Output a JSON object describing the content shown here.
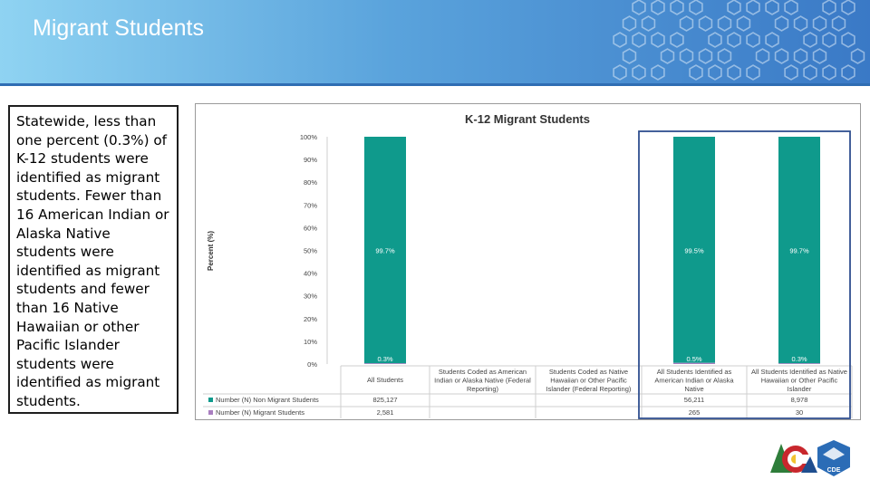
{
  "slide": {
    "title": "Migrant Students",
    "body_text": "Statewide, less than one percent (0.3%) of K-12 students were identified as migrant students. Fewer than 16 American Indian or Alaska Native students were identified as migrant students and fewer than 16 Native Hawaiian or other Pacific Islander students were identified as migrant students.",
    "logo_left_text": "",
    "logo_right_text": "CDE"
  },
  "chart_data": {
    "type": "bar",
    "stacked": true,
    "title": "K-12 Migrant Students",
    "ylabel": "Percent (%)",
    "ylim": [
      0,
      100
    ],
    "yticks": [
      "0%",
      "10%",
      "20%",
      "30%",
      "40%",
      "50%",
      "60%",
      "70%",
      "80%",
      "90%",
      "100%"
    ],
    "categories": [
      "All Students",
      "Students Coded as American Indian or Alaska Native (Federal Reporting)",
      "Students Coded as Native Hawaiian or Other Pacific Islander (Federal Reporting)",
      "All Students Identified as American Indian or Alaska Native",
      "All Students Identified as Native Hawaiian or Other Pacific Islander"
    ],
    "series": [
      {
        "name": "Number (N) Non Migrant Students",
        "color": "#0f9a8c",
        "values": [
          99.7,
          null,
          null,
          99.5,
          99.7
        ],
        "labels": [
          "99.7%",
          "",
          "",
          "99.5%",
          "99.7%"
        ],
        "table": [
          "825,127",
          "",
          "",
          "56,211",
          "8,978"
        ]
      },
      {
        "name": "Number (N) Migrant Students",
        "color": "#a97ec0",
        "values": [
          0.3,
          null,
          null,
          0.5,
          0.3
        ],
        "labels": [
          "0.3%",
          "",
          "",
          "0.5%",
          "0.3%"
        ],
        "table": [
          "2,581",
          "",
          "",
          "265",
          "30"
        ]
      }
    ],
    "highlight_categories": [
      3,
      4
    ],
    "highlight_color": "#2f4f8f"
  }
}
